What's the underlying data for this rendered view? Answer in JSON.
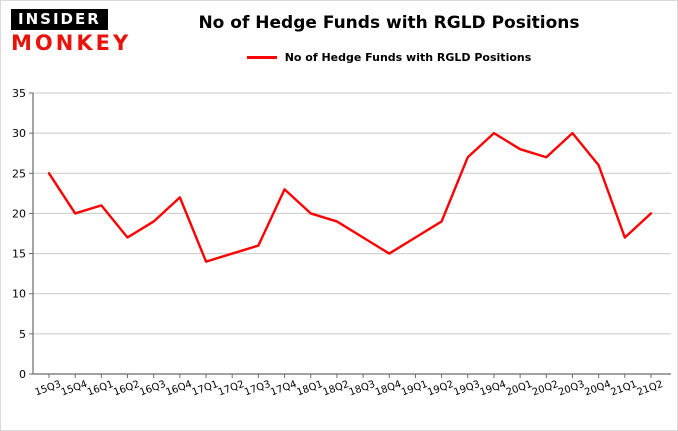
{
  "brand": {
    "line1": "INSIDER",
    "line2": "MONKEY"
  },
  "title": "No of Hedge Funds with RGLD Positions",
  "legend": {
    "label": "No of Hedge Funds with RGLD Positions",
    "color": "#fe0000"
  },
  "chart_data": {
    "type": "line",
    "title": "No of Hedge Funds with RGLD Positions",
    "xlabel": "",
    "ylabel": "",
    "ylim": [
      0,
      35
    ],
    "yticks": [
      0,
      5,
      10,
      15,
      20,
      25,
      30,
      35
    ],
    "grid": true,
    "legend_position": "top",
    "categories": [
      "15Q3",
      "15Q4",
      "16Q1",
      "16Q2",
      "16Q3",
      "16Q4",
      "17Q1",
      "17Q2",
      "17Q3",
      "17Q4",
      "18Q1",
      "18Q2",
      "18Q3",
      "18Q4",
      "19Q1",
      "19Q2",
      "19Q3",
      "19Q4",
      "20Q1",
      "20Q2",
      "20Q3",
      "20Q4",
      "21Q1",
      "21Q2"
    ],
    "series": [
      {
        "name": "No of Hedge Funds with RGLD Positions",
        "color": "#fe0000",
        "values": [
          25,
          20,
          21,
          17,
          19,
          22,
          14,
          15,
          16,
          23,
          20,
          19,
          17,
          15,
          17,
          19,
          27,
          30,
          28,
          27,
          30,
          26,
          17,
          20
        ]
      }
    ],
    "colors": {
      "line": "#fe0000",
      "grid": "#c9c9c9",
      "axis": "#6b6b6b",
      "text": "#000000"
    }
  }
}
